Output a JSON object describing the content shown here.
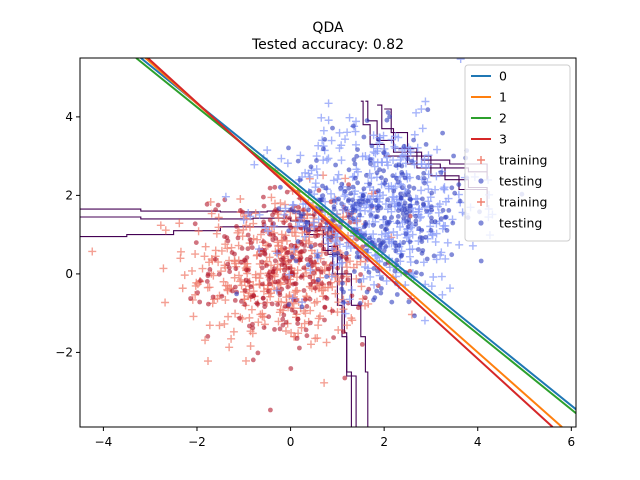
{
  "chart_data": {
    "type": "scatter",
    "title": "QDA",
    "subtitle": "Tested accuracy: 0.82",
    "xlabel": "",
    "ylabel": "",
    "xlim": [
      -4.5,
      6.1
    ],
    "ylim": [
      -3.9,
      5.5
    ],
    "grid": false,
    "legend_position": "top-right",
    "x_ticks": [
      {
        "value": -4,
        "label": "−4"
      },
      {
        "value": -2,
        "label": "−2"
      },
      {
        "value": 0,
        "label": "0"
      },
      {
        "value": 2,
        "label": "2"
      },
      {
        "value": 4,
        "label": "4"
      },
      {
        "value": 6,
        "label": "6"
      }
    ],
    "y_ticks": [
      {
        "value": -2,
        "label": "−2"
      },
      {
        "value": 0,
        "label": "0"
      },
      {
        "value": 2,
        "label": "2"
      },
      {
        "value": 4,
        "label": "4"
      }
    ],
    "lines": [
      {
        "name": "0",
        "color": "#1f77b4",
        "points": [
          [
            -3.2,
            5.5
          ],
          [
            6.1,
            -3.45
          ]
        ]
      },
      {
        "name": "1",
        "color": "#ff7f0e",
        "points": [
          [
            -3.1,
            5.5
          ],
          [
            5.8,
            -3.9
          ]
        ]
      },
      {
        "name": "2",
        "color": "#2ca02c",
        "points": [
          [
            -3.3,
            5.5
          ],
          [
            6.1,
            -3.55
          ]
        ]
      },
      {
        "name": "3",
        "color": "#d62728",
        "points": [
          [
            -3.05,
            5.5
          ],
          [
            5.6,
            -3.9
          ]
        ]
      }
    ],
    "scatter_series": [
      {
        "name": "training",
        "marker": "+",
        "color": "#f08070",
        "class": "red",
        "center": [
          -0.2,
          0.1
        ],
        "spread": [
          1.0,
          1.0
        ],
        "count": 420
      },
      {
        "name": "testing",
        "marker": "o",
        "color": "#b2182b",
        "class": "red",
        "center": [
          0.0,
          0.2
        ],
        "spread": [
          0.85,
          0.95
        ],
        "count": 300
      },
      {
        "name": "training",
        "marker": "+",
        "color": "#8a9cf8",
        "class": "blue",
        "center": [
          1.9,
          1.7
        ],
        "spread": [
          1.05,
          1.1
        ],
        "count": 420
      },
      {
        "name": "testing",
        "marker": "o",
        "color": "#3040c0",
        "class": "blue",
        "center": [
          1.9,
          1.6
        ],
        "spread": [
          0.95,
          1.0
        ],
        "count": 300
      }
    ],
    "contour_color": "#440154",
    "contour_lines": [
      [
        [
          -4.5,
          1.65
        ],
        [
          -3.2,
          1.6
        ],
        [
          -2.5,
          1.6
        ],
        [
          -1.5,
          1.58
        ],
        [
          -0.5,
          1.6
        ],
        [
          0.2,
          1.5
        ],
        [
          0.5,
          1.2
        ],
        [
          0.8,
          0.7
        ],
        [
          1.0,
          0.0
        ],
        [
          1.1,
          -0.7
        ],
        [
          1.15,
          -1.5
        ],
        [
          1.2,
          -2.5
        ],
        [
          1.3,
          -3.9
        ]
      ],
      [
        [
          -4.5,
          1.45
        ],
        [
          -3.2,
          1.4
        ],
        [
          -2.0,
          1.4
        ],
        [
          -0.8,
          1.42
        ],
        [
          0.0,
          1.35
        ],
        [
          0.4,
          1.1
        ],
        [
          0.7,
          0.6
        ],
        [
          0.9,
          0.0
        ],
        [
          1.0,
          -0.8
        ],
        [
          1.1,
          -1.6
        ],
        [
          1.2,
          -2.6
        ],
        [
          1.4,
          -3.9
        ]
      ],
      [
        [
          -4.5,
          0.95
        ],
        [
          -3.5,
          1.0
        ],
        [
          -2.5,
          1.1
        ],
        [
          -1.5,
          1.2
        ],
        [
          -0.5,
          1.2
        ],
        [
          0.3,
          1.0
        ],
        [
          0.8,
          0.5
        ],
        [
          1.1,
          0.0
        ],
        [
          1.3,
          -0.8
        ],
        [
          1.5,
          -1.6
        ],
        [
          1.6,
          -2.5
        ],
        [
          1.65,
          -3.9
        ]
      ],
      [
        [
          1.5,
          4.4
        ],
        [
          1.55,
          3.8
        ],
        [
          1.7,
          3.3
        ],
        [
          2.0,
          3.0
        ],
        [
          2.5,
          2.8
        ],
        [
          3.2,
          2.7
        ],
        [
          3.8,
          2.6
        ],
        [
          4.2,
          2.6
        ]
      ],
      [
        [
          1.6,
          4.4
        ],
        [
          1.65,
          3.9
        ],
        [
          1.85,
          3.4
        ],
        [
          2.2,
          3.1
        ],
        [
          2.8,
          2.9
        ],
        [
          3.4,
          2.8
        ],
        [
          4.2,
          2.4
        ]
      ],
      [
        [
          1.85,
          4.3
        ],
        [
          1.95,
          3.7
        ],
        [
          2.2,
          3.2
        ],
        [
          2.7,
          2.7
        ],
        [
          3.3,
          2.4
        ],
        [
          3.8,
          2.2
        ],
        [
          4.2,
          2.0
        ]
      ],
      [
        [
          2.0,
          4.2
        ],
        [
          2.15,
          3.6
        ],
        [
          2.5,
          3.0
        ],
        [
          3.0,
          2.5
        ],
        [
          3.6,
          2.15
        ],
        [
          4.2,
          1.7
        ]
      ]
    ],
    "legend": {
      "entries": [
        {
          "label": "0",
          "kind": "line",
          "color": "#1f77b4"
        },
        {
          "label": "1",
          "kind": "line",
          "color": "#ff7f0e"
        },
        {
          "label": "2",
          "kind": "line",
          "color": "#2ca02c"
        },
        {
          "label": "3",
          "kind": "line",
          "color": "#d62728"
        },
        {
          "label": "training",
          "kind": "plus",
          "color": "#f08070"
        },
        {
          "label": "testing",
          "kind": "dot",
          "color": "#3040c0"
        },
        {
          "label": "training",
          "kind": "plus",
          "color": "#f08070"
        },
        {
          "label": "testing",
          "kind": "dot",
          "color": "#3040c0"
        }
      ]
    }
  }
}
